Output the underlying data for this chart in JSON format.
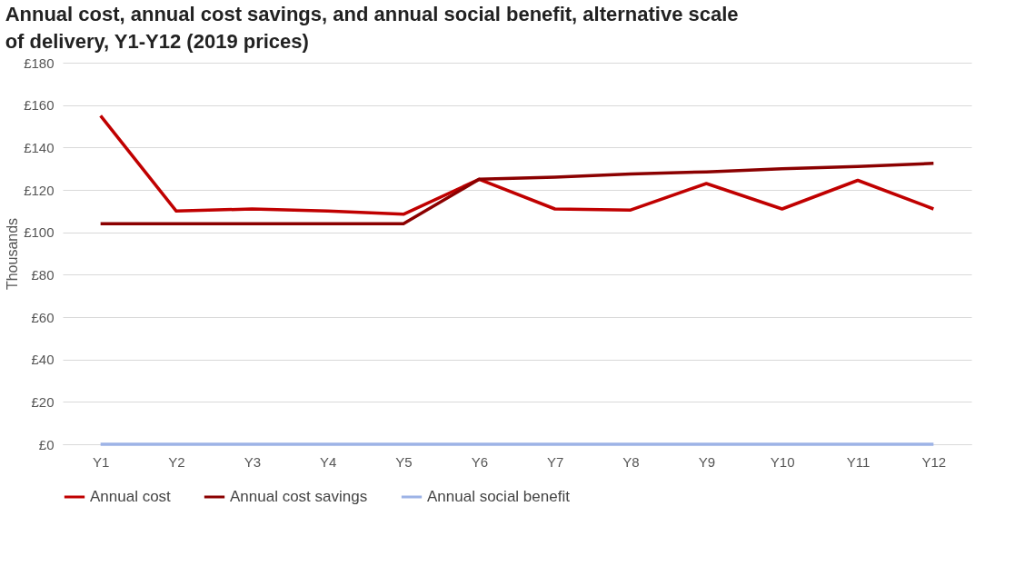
{
  "chart_data": {
    "type": "line",
    "title": "Annual cost, annual cost savings, and annual social benefit, alternative scale of delivery, Y1-Y12 (2019 prices)",
    "ylabel": "Thousands",
    "categories": [
      "Y1",
      "Y2",
      "Y3",
      "Y4",
      "Y5",
      "Y6",
      "Y7",
      "Y8",
      "Y9",
      "Y10",
      "Y11",
      "Y12"
    ],
    "series": [
      {
        "name": "Annual cost",
        "color": "#c00000",
        "values": [
          155,
          110,
          111,
          110,
          108.5,
          125,
          111,
          110.5,
          123,
          111,
          124.5,
          111
        ]
      },
      {
        "name": "Annual cost savings",
        "color": "#8b0000",
        "values": [
          104,
          104,
          104,
          104,
          104,
          125,
          126,
          127.5,
          128.5,
          130,
          131,
          132.5
        ]
      },
      {
        "name": "Annual social benefit",
        "color": "#9db3e6",
        "values": [
          0,
          0,
          0,
          0,
          0,
          0,
          0,
          0,
          0,
          0,
          0,
          0
        ]
      }
    ],
    "ylim": [
      0,
      180
    ],
    "yticks": [
      {
        "value": 0,
        "label": "£0"
      },
      {
        "value": 20,
        "label": "£20"
      },
      {
        "value": 40,
        "label": "£40"
      },
      {
        "value": 60,
        "label": "£60"
      },
      {
        "value": 80,
        "label": "£80"
      },
      {
        "value": 100,
        "label": "£100"
      },
      {
        "value": 120,
        "label": "£120"
      },
      {
        "value": 140,
        "label": "£140"
      },
      {
        "value": 160,
        "label": "£160"
      },
      {
        "value": 180,
        "label": "£180"
      }
    ],
    "grid": "y",
    "legend": "bottom",
    "marker": "none",
    "line_style": "solid"
  }
}
